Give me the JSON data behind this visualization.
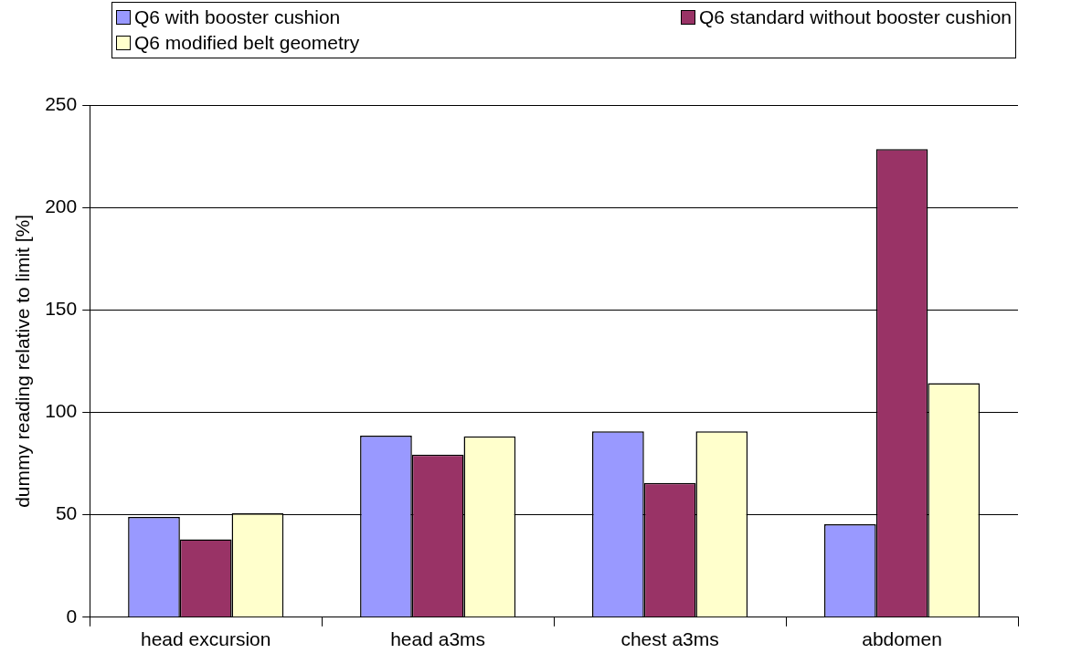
{
  "chart_data": {
    "type": "bar",
    "ylabel": "dummy reading relative to limit [%]",
    "categories": [
      "head excursion",
      "head a3ms",
      "chest a3ms",
      "abdomen"
    ],
    "series": [
      {
        "name": "Q6 with booster cushion",
        "color": "#9999ff",
        "values": [
          49,
          88.6,
          90.7,
          45.4
        ]
      },
      {
        "name": "Q6 standard without booster cushion",
        "color": "#993366",
        "values": [
          38,
          79.4,
          65.6,
          228.5
        ]
      },
      {
        "name": "Q6 modified belt geometry",
        "color": "#ffffcc",
        "values": [
          50.7,
          88.3,
          90.7,
          114.3
        ]
      }
    ],
    "ylim": [
      0,
      250
    ],
    "yticks": [
      0,
      50,
      100,
      150,
      200,
      250
    ],
    "grid": "y",
    "legend": "top"
  }
}
